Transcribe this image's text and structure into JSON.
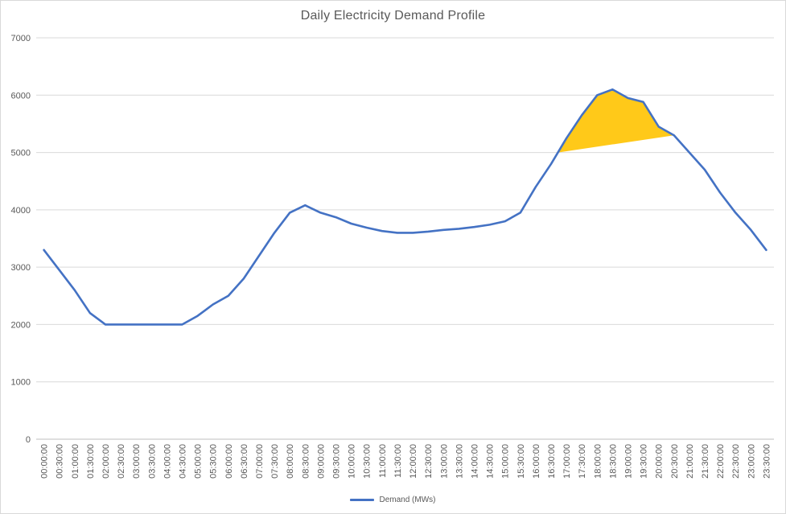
{
  "window": {
    "background": "#FFFFFF",
    "border_color": "#D9D9D9"
  },
  "chart_data": {
    "type": "line",
    "title": "Daily Electricity Demand Profile",
    "xlabel": "",
    "ylabel": "",
    "ylim": [
      0,
      7000
    ],
    "ytick_step": 1000,
    "grid": true,
    "legend_position": "bottom-center",
    "x_tick_rotation_deg": -90,
    "categories": [
      "00:00:00",
      "00:30:00",
      "01:00:00",
      "01:30:00",
      "02:00:00",
      "02:30:00",
      "03:00:00",
      "03:30:00",
      "04:00:00",
      "04:30:00",
      "05:00:00",
      "05:30:00",
      "06:00:00",
      "06:30:00",
      "07:00:00",
      "07:30:00",
      "08:00:00",
      "08:30:00",
      "09:00:00",
      "09:30:00",
      "10:00:00",
      "10:30:00",
      "11:00:00",
      "11:30:00",
      "12:00:00",
      "12:30:00",
      "13:00:00",
      "13:30:00",
      "14:00:00",
      "14:30:00",
      "15:00:00",
      "15:30:00",
      "16:00:00",
      "16:30:00",
      "17:00:00",
      "17:30:00",
      "18:00:00",
      "18:30:00",
      "19:00:00",
      "19:30:00",
      "20:00:00",
      "20:30:00",
      "21:00:00",
      "21:30:00",
      "22:00:00",
      "22:30:00",
      "23:00:00",
      "23:30:00"
    ],
    "series": [
      {
        "name": "Demand (MWs)",
        "color": "#4472C4",
        "values": [
          3300,
          2950,
          2600,
          2200,
          2000,
          2000,
          2000,
          2000,
          2000,
          2000,
          2150,
          2350,
          2500,
          2800,
          3200,
          3600,
          3950,
          4080,
          3950,
          3870,
          3760,
          3690,
          3630,
          3600,
          3600,
          3620,
          3650,
          3670,
          3700,
          3740,
          3800,
          3950,
          4400,
          4800,
          5250,
          5650,
          6000,
          6100,
          5950,
          5880,
          5450,
          5300,
          5000,
          4700,
          4300,
          3950,
          3650,
          3300
        ]
      }
    ],
    "highlight": {
      "type": "area-above-threshold",
      "threshold": 5000,
      "color": "#FFC919",
      "description": "Filled area between demand line and 5000 MW level during evening peak"
    },
    "colors": {
      "gridline": "#D9D9D9",
      "axis_line": "#BFBFBF",
      "tick_text": "#595959",
      "title_text": "#595959"
    }
  }
}
